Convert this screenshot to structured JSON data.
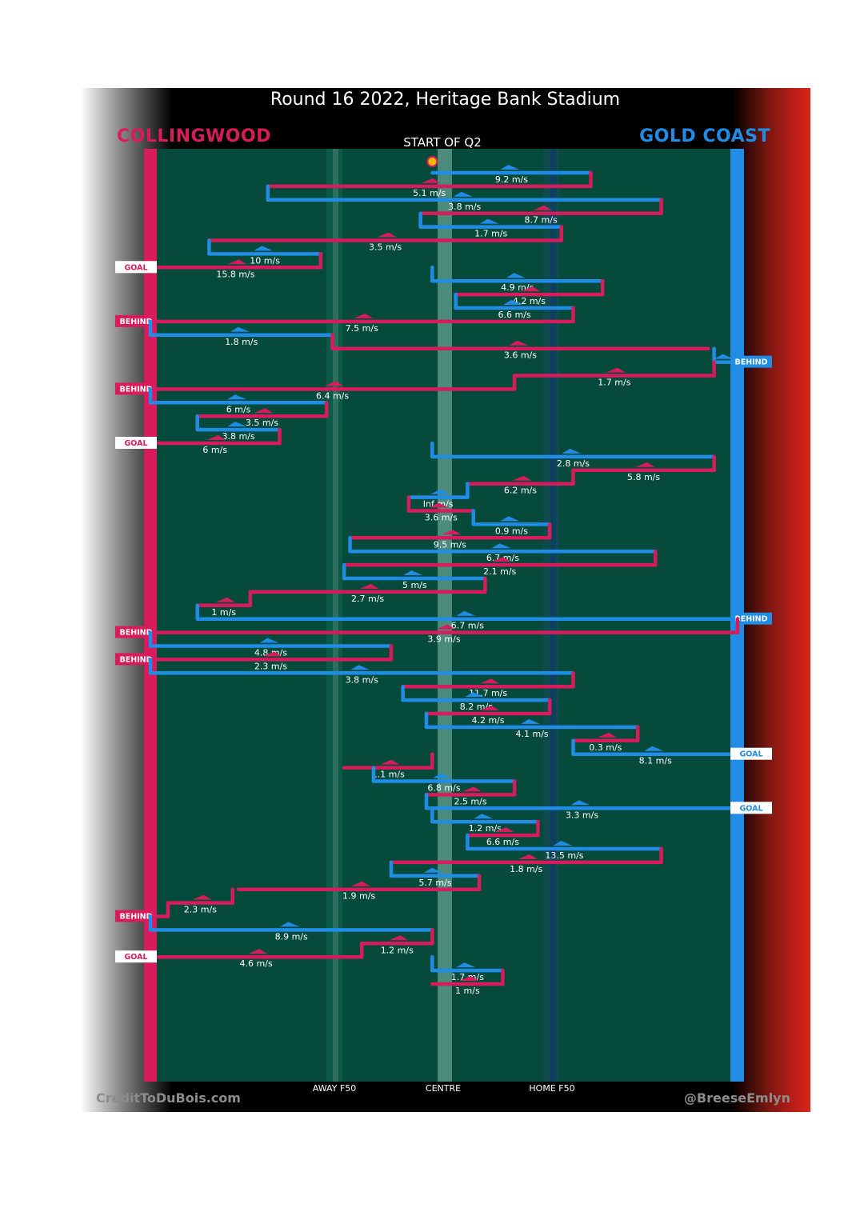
{
  "title": "Round 16 2022, Heritage Bank Stadium",
  "teams": {
    "left": "COLLINGWOOD",
    "right": "GOLD COAST"
  },
  "start_label": "START OF Q2",
  "axis_labels": {
    "away": "AWAY F50",
    "centre": "CENTRE",
    "home": "HOME F50"
  },
  "credits": {
    "left": "CreditToDuBois.com",
    "right": "@BreeseEmlyn"
  },
  "colors": {
    "collingwood": "#d81b5a",
    "gold_coast": "#1f8ce6",
    "field": "#064a3c",
    "marker": "#f5b800"
  },
  "chart_data": {
    "type": "line",
    "title": "Round 16 2022, Heritage Bank Stadium",
    "xlabel": "",
    "ylabel": "",
    "x_ticks": [
      "AWAY F50",
      "CENTRE",
      "HOME F50"
    ],
    "series": [
      {
        "name": "COLLINGWOOD",
        "color": "#d81b5a"
      },
      {
        "name": "GOLD COAST",
        "color": "#1f8ce6"
      }
    ],
    "chains": [
      {
        "team": "GOLD COAST",
        "x1": 0.48,
        "x2": 0.75,
        "speed": "9.2 m/s"
      },
      {
        "team": "COLLINGWOOD",
        "x1": 0.75,
        "x2": 0.2,
        "speed": "5.1 m/s"
      },
      {
        "team": "GOLD COAST",
        "x1": 0.2,
        "x2": 0.87,
        "speed": "3.8 m/s"
      },
      {
        "team": "COLLINGWOOD",
        "x1": 0.87,
        "x2": 0.46,
        "speed": "8.7 m/s"
      },
      {
        "team": "GOLD COAST",
        "x1": 0.46,
        "x2": 0.7,
        "speed": "1.7 m/s"
      },
      {
        "team": "COLLINGWOOD",
        "x1": 0.7,
        "x2": 0.1,
        "speed": "3.5 m/s"
      },
      {
        "team": "GOLD COAST",
        "x1": 0.1,
        "x2": 0.29,
        "speed": "10 m/s"
      },
      {
        "team": "COLLINGWOOD",
        "x1": 0.29,
        "x2": 0.0,
        "speed": "15.8 m/s",
        "result": "GOAL"
      },
      {
        "team": "GOLD COAST",
        "x1": 0.48,
        "x2": 0.77,
        "speed": "4.9 m/s"
      },
      {
        "team": "COLLINGWOOD",
        "x1": 0.77,
        "x2": 0.52,
        "speed": "4.2 m/s"
      },
      {
        "team": "GOLD COAST",
        "x1": 0.52,
        "x2": 0.72,
        "speed": "6.6 m/s"
      },
      {
        "team": "COLLINGWOOD",
        "x1": 0.72,
        "x2": 0.0,
        "speed": "7.5 m/s",
        "result": "BEHIND"
      },
      {
        "team": "GOLD COAST",
        "x1": 0.0,
        "x2": 0.31,
        "speed": "1.8 m/s"
      },
      {
        "team": "COLLINGWOOD",
        "x1": 0.31,
        "x2": 0.95,
        "speed": "3.6 m/s"
      },
      {
        "team": "GOLD COAST",
        "x1": 0.96,
        "x2": 1.0,
        "speed": "",
        "result": "BEHIND"
      },
      {
        "team": "COLLINGWOOD",
        "x1": 0.96,
        "x2": 0.62,
        "speed": "1.7 m/s"
      },
      {
        "team": "COLLINGWOOD",
        "x1": 0.62,
        "x2": 0.0,
        "speed": "6.4 m/s",
        "result": "BEHIND"
      },
      {
        "team": "GOLD COAST",
        "x1": 0.0,
        "x2": 0.3,
        "speed": "6 m/s"
      },
      {
        "team": "COLLINGWOOD",
        "x1": 0.3,
        "x2": 0.08,
        "speed": "3.5 m/s"
      },
      {
        "team": "GOLD COAST",
        "x1": 0.08,
        "x2": 0.22,
        "speed": "3.8 m/s"
      },
      {
        "team": "COLLINGWOOD",
        "x1": 0.22,
        "x2": 0.0,
        "speed": "6 m/s",
        "result": "GOAL"
      },
      {
        "team": "GOLD COAST",
        "x1": 0.48,
        "x2": 0.96,
        "speed": "2.8 m/s"
      },
      {
        "team": "COLLINGWOOD",
        "x1": 0.96,
        "x2": 0.72,
        "speed": "5.8 m/s"
      },
      {
        "team": "COLLINGWOOD",
        "x1": 0.72,
        "x2": 0.54,
        "speed": "6.2 m/s"
      },
      {
        "team": "GOLD COAST",
        "x1": 0.54,
        "x2": 0.44,
        "speed": "Inf m/s"
      },
      {
        "team": "COLLINGWOOD",
        "x1": 0.44,
        "x2": 0.55,
        "speed": "3.6 m/s"
      },
      {
        "team": "GOLD COAST",
        "x1": 0.55,
        "x2": 0.68,
        "speed": "0.9 m/s"
      },
      {
        "team": "COLLINGWOOD",
        "x1": 0.68,
        "x2": 0.34,
        "speed": "9.5 m/s"
      },
      {
        "team": "GOLD COAST",
        "x1": 0.34,
        "x2": 0.86,
        "speed": "6.7 m/s"
      },
      {
        "team": "COLLINGWOOD",
        "x1": 0.86,
        "x2": 0.33,
        "speed": "2.1 m/s"
      },
      {
        "team": "GOLD COAST",
        "x1": 0.33,
        "x2": 0.57,
        "speed": "5 m/s"
      },
      {
        "team": "COLLINGWOOD",
        "x1": 0.57,
        "x2": 0.17,
        "speed": "2.7 m/s"
      },
      {
        "team": "COLLINGWOOD",
        "x1": 0.17,
        "x2": 0.08,
        "speed": "1 m/s"
      },
      {
        "team": "GOLD COAST",
        "x1": 0.08,
        "x2": 1.0,
        "speed": "6.7 m/s",
        "result": "BEHIND"
      },
      {
        "team": "COLLINGWOOD",
        "x1": 1.0,
        "x2": 0.0,
        "speed": "3.9 m/s",
        "result": "BEHIND"
      },
      {
        "team": "GOLD COAST",
        "x1": 0.0,
        "x2": 0.41,
        "speed": "4.8 m/s"
      },
      {
        "team": "COLLINGWOOD",
        "x1": 0.41,
        "x2": 0.0,
        "speed": "2.3 m/s",
        "result": "BEHIND"
      },
      {
        "team": "GOLD COAST",
        "x1": 0.0,
        "x2": 0.72,
        "speed": "3.8 m/s"
      },
      {
        "team": "COLLINGWOOD",
        "x1": 0.72,
        "x2": 0.43,
        "speed": "11.7 m/s"
      },
      {
        "team": "GOLD COAST",
        "x1": 0.43,
        "x2": 0.68,
        "speed": "8.2 m/s"
      },
      {
        "team": "COLLINGWOOD",
        "x1": 0.68,
        "x2": 0.47,
        "speed": "4.2 m/s"
      },
      {
        "team": "GOLD COAST",
        "x1": 0.47,
        "x2": 0.83,
        "speed": "4.1 m/s"
      },
      {
        "team": "COLLINGWOOD",
        "x1": 0.83,
        "x2": 0.72,
        "speed": "0.3 m/s"
      },
      {
        "team": "GOLD COAST",
        "x1": 0.72,
        "x2": 1.0,
        "speed": "8.1 m/s",
        "result": "GOAL"
      },
      {
        "team": "COLLINGWOOD",
        "x1": 0.48,
        "x2": 0.33,
        "speed": "1.1 m/s"
      },
      {
        "team": "GOLD COAST",
        "x1": 0.38,
        "x2": 0.62,
        "speed": "6.8 m/s"
      },
      {
        "team": "COLLINGWOOD",
        "x1": 0.62,
        "x2": 0.47,
        "speed": "2.5 m/s"
      },
      {
        "team": "GOLD COAST",
        "x1": 0.47,
        "x2": 1.0,
        "speed": "3.3 m/s",
        "result": "GOAL"
      },
      {
        "team": "GOLD COAST",
        "x1": 0.48,
        "x2": 0.66,
        "speed": "1.2 m/s"
      },
      {
        "team": "COLLINGWOOD",
        "x1": 0.66,
        "x2": 0.54,
        "speed": "6.6 m/s"
      },
      {
        "team": "GOLD COAST",
        "x1": 0.54,
        "x2": 0.87,
        "speed": "13.5 m/s"
      },
      {
        "team": "COLLINGWOOD",
        "x1": 0.87,
        "x2": 0.41,
        "speed": "1.8 m/s"
      },
      {
        "team": "GOLD COAST",
        "x1": 0.41,
        "x2": 0.56,
        "speed": "5.7 m/s"
      },
      {
        "team": "COLLINGWOOD",
        "x1": 0.56,
        "x2": 0.15,
        "speed": "1.9 m/s"
      },
      {
        "team": "COLLINGWOOD",
        "x1": 0.14,
        "x2": 0.03,
        "speed": "2.3 m/s"
      },
      {
        "team": "COLLINGWOOD",
        "x1": 0.03,
        "x2": 0.0,
        "speed": "",
        "result": "BEHIND"
      },
      {
        "team": "GOLD COAST",
        "x1": 0.0,
        "x2": 0.48,
        "speed": "8.9 m/s"
      },
      {
        "team": "COLLINGWOOD",
        "x1": 0.48,
        "x2": 0.36,
        "speed": "1.2 m/s"
      },
      {
        "team": "COLLINGWOOD",
        "x1": 0.36,
        "x2": 0.0,
        "speed": "4.6 m/s",
        "result": "GOAL"
      },
      {
        "team": "GOLD COAST",
        "x1": 0.48,
        "x2": 0.6,
        "speed": "1.7 m/s"
      },
      {
        "team": "COLLINGWOOD",
        "x1": 0.6,
        "x2": 0.48,
        "speed": "1 m/s"
      }
    ]
  }
}
